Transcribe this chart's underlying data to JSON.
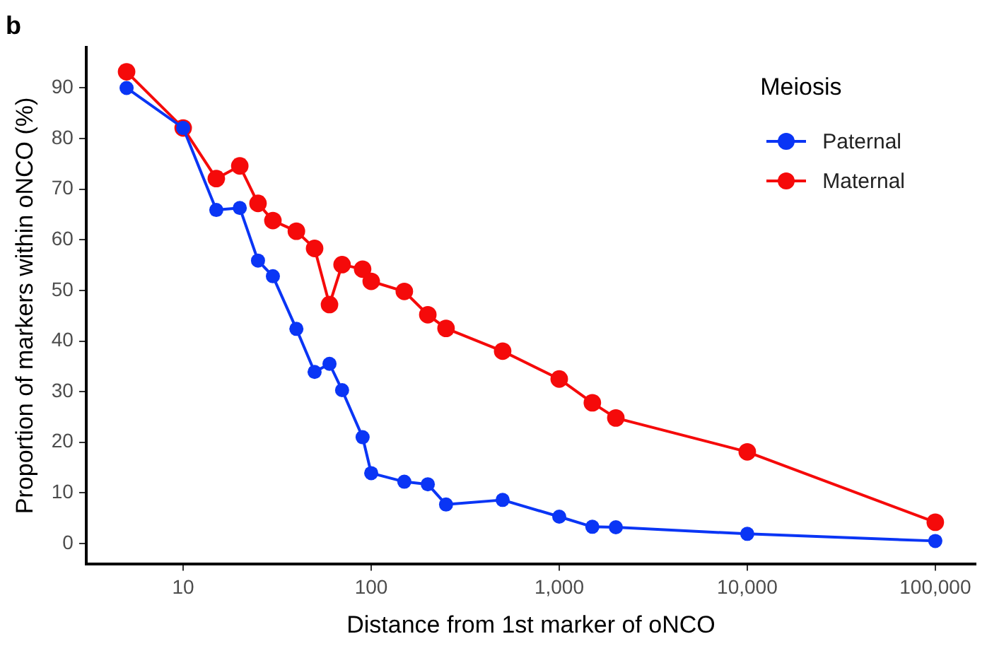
{
  "chart_data": {
    "type": "line",
    "title": "b",
    "xlabel": "Distance from 1st marker of oNCO",
    "ylabel": "Proportion of markers within oNCO (%)",
    "legend_title": "Meiosis",
    "legend": "top right",
    "log": "x",
    "marker": "circle",
    "line_style": "solid",
    "grid": false,
    "x": [
      5,
      10,
      15,
      20,
      25,
      30,
      40,
      50,
      60,
      70,
      90,
      100,
      150,
      200,
      250,
      500,
      1000,
      1500,
      2000,
      10000,
      100000
    ],
    "xlim": [
      3.05,
      164000
    ],
    "xticks": [
      10,
      100,
      {
        "value": 1000,
        "label": "1,000"
      },
      {
        "value": 10000,
        "label": "10,000"
      },
      {
        "value": 100000,
        "label": "100,000"
      }
    ],
    "ylim": [
      -4,
      98
    ],
    "yticks": [
      0,
      10,
      20,
      30,
      40,
      50,
      60,
      70,
      80,
      90
    ],
    "series": [
      {
        "name": "Paternal",
        "color": "#0a35f5",
        "values": [
          90,
          82.1,
          65.9,
          66.3,
          55.9,
          52.8,
          42.4,
          33.9,
          35.5,
          30.3,
          21,
          13.9,
          12.2,
          11.7,
          7.7,
          8.6,
          5.3,
          3.3,
          3.2,
          1.9,
          0.5
        ]
      },
      {
        "name": "Maternal",
        "color": "#f50a0a",
        "values": [
          93.2,
          82.1,
          72.1,
          74.6,
          67.2,
          63.8,
          61.7,
          58.3,
          47.2,
          55.1,
          54.2,
          51.8,
          49.8,
          45.2,
          42.5,
          38,
          32.5,
          27.8,
          24.8,
          18.1,
          4.2
        ]
      }
    ]
  }
}
